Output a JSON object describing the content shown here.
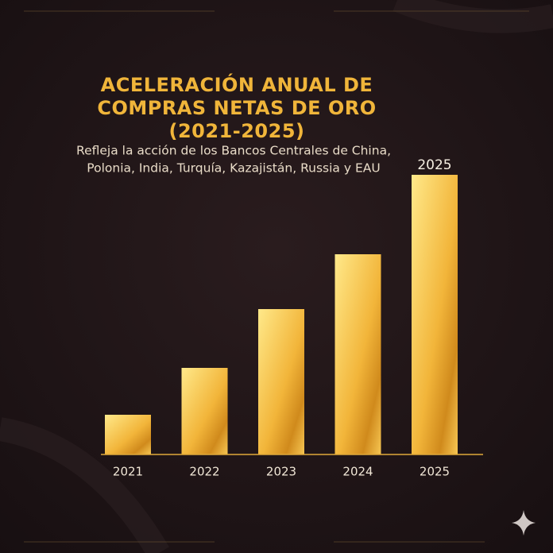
{
  "chart_data": {
    "type": "bar",
    "title": [
      "ACELERACIÓN ANUAL DE",
      "COMPRAS NETAS DE ORO",
      "(2021-2025)"
    ],
    "subtitle": [
      "Refleja la acción de los Bancos Centrales de China,",
      "Polonia, India, Turquía, Kazajistán, Russia y EAU"
    ],
    "categories": [
      "2021",
      "2022",
      "2023",
      "2024",
      "2025"
    ],
    "values": [
      50,
      109,
      183,
      252,
      352
    ],
    "annotation": "2025"
  }
}
